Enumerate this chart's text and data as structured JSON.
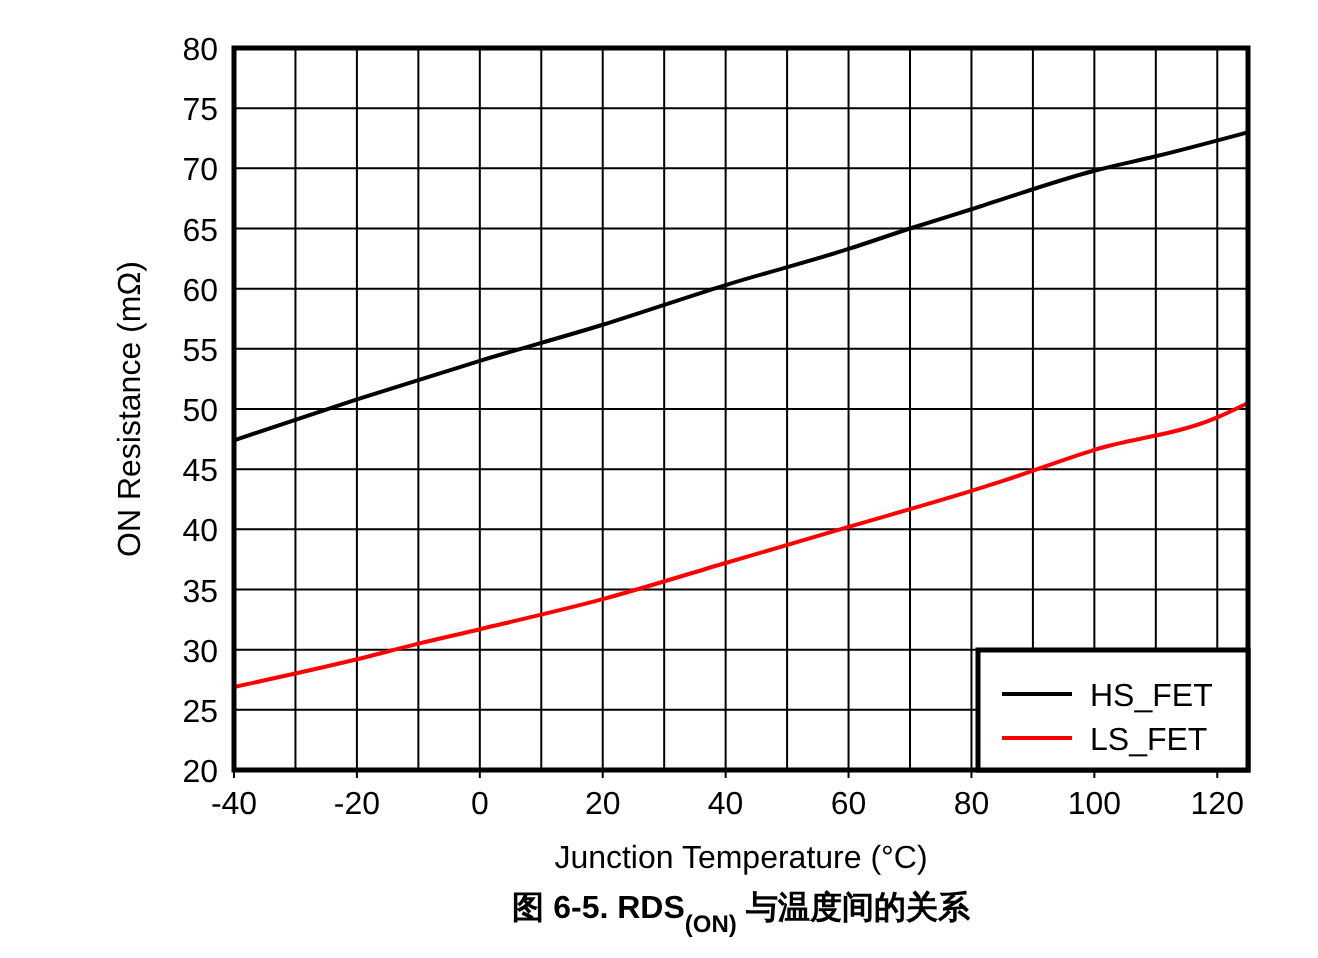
{
  "chart_data": {
    "type": "line",
    "title": "图 6-5. RDS$_{(ON)}$ 与温度间的关系",
    "xlabel": "Junction Temperature (°C)",
    "ylabel": "ON Resistance (mΩ)",
    "xlim": [
      -40,
      125
    ],
    "xticks": [
      -40,
      -20,
      0,
      20,
      40,
      60,
      80,
      100,
      120
    ],
    "ylim": [
      20,
      80
    ],
    "yticks": [
      20,
      25,
      30,
      35,
      40,
      45,
      50,
      55,
      60,
      65,
      70,
      75,
      80
    ],
    "grid": true,
    "legend": "bottom right",
    "line_style": "solid",
    "marker": "none",
    "x": [
      -40,
      -20,
      0,
      20,
      40,
      60,
      70,
      80,
      100,
      110,
      125
    ],
    "series": [
      {
        "name": "HS_FET",
        "color": "#000000",
        "values": [
          47.4,
          50.8,
          54,
          57,
          60.3,
          63.3,
          65,
          66.6,
          69.8,
          71,
          73
        ]
      },
      {
        "name": "LS_FET",
        "color": "#ff0000",
        "x": [
          -40,
          -20,
          -10,
          0,
          20,
          40,
          60,
          80,
          85,
          100,
          120,
          125
        ],
        "values": [
          26.9,
          29.2,
          30.5,
          31.7,
          34.2,
          37.2,
          40.2,
          43.2,
          44,
          46.6,
          49.3,
          50.5
        ]
      }
    ]
  }
}
